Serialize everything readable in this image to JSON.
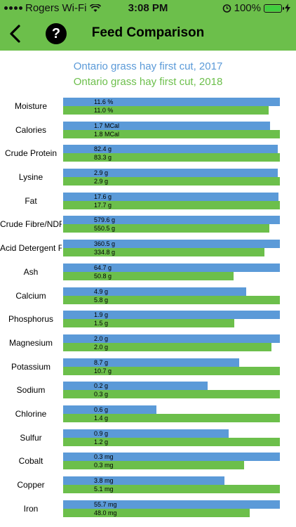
{
  "status": {
    "carrier": "Rogers Wi-Fi",
    "time": "3:08 PM",
    "battery": "100%"
  },
  "header": {
    "title": "Feed Comparison",
    "help_label": "?"
  },
  "legend": {
    "series_a": "Ontario grass hay first cut, 2017",
    "series_b": "Ontario grass hay first cut, 2018"
  },
  "colors": {
    "series_a": "#5b9ad8",
    "series_b": "#6cbf4b"
  },
  "rows": [
    {
      "name": "Moisture",
      "a": "11.6 %",
      "b": "11.0 %",
      "a_frac": 1.0,
      "b_frac": 0.948
    },
    {
      "name": "Calories",
      "a": "1.7 MCal",
      "b": "1.8 MCal",
      "a_frac": 0.956,
      "b_frac": 1.0
    },
    {
      "name": "Crude Protein",
      "a": "82.4 g",
      "b": "83.3 g",
      "a_frac": 0.99,
      "b_frac": 1.0
    },
    {
      "name": "Lysine",
      "a": "2.9 g",
      "b": "2.9 g",
      "a_frac": 0.99,
      "b_frac": 1.0
    },
    {
      "name": "Fat",
      "a": "17.6 g",
      "b": "17.7 g",
      "a_frac": 0.994,
      "b_frac": 1.0
    },
    {
      "name": "Crude Fibre/NDF",
      "a": "579.6 g",
      "b": "550.5 g",
      "a_frac": 1.0,
      "b_frac": 0.95
    },
    {
      "name": "Acid Detergent Fibre",
      "a": "360.5 g",
      "b": "334.8 g",
      "a_frac": 1.0,
      "b_frac": 0.929
    },
    {
      "name": "Ash",
      "a": "64.7 g",
      "b": "50.8 g",
      "a_frac": 1.0,
      "b_frac": 0.785
    },
    {
      "name": "Calcium",
      "a": "4.9 g",
      "b": "5.8 g",
      "a_frac": 0.845,
      "b_frac": 1.0
    },
    {
      "name": "Phosphorus",
      "a": "1.9 g",
      "b": "1.5 g",
      "a_frac": 1.0,
      "b_frac": 0.789
    },
    {
      "name": "Magnesium",
      "a": "2.0 g",
      "b": "2.0 g",
      "a_frac": 1.0,
      "b_frac": 0.96
    },
    {
      "name": "Potassium",
      "a": "8.7 g",
      "b": "10.7 g",
      "a_frac": 0.813,
      "b_frac": 1.0
    },
    {
      "name": "Sodium",
      "a": "0.2 g",
      "b": "0.3 g",
      "a_frac": 0.667,
      "b_frac": 1.0
    },
    {
      "name": "Chlorine",
      "a": "0.6 g",
      "b": "1.4 g",
      "a_frac": 0.43,
      "b_frac": 1.0
    },
    {
      "name": "Sulfur",
      "a": "0.9 g",
      "b": "1.2 g",
      "a_frac": 0.765,
      "b_frac": 1.0
    },
    {
      "name": "Cobalt",
      "a": "0.3 mg",
      "b": "0.3 mg",
      "a_frac": 1.0,
      "b_frac": 0.835
    },
    {
      "name": "Copper",
      "a": "3.8 mg",
      "b": "5.1 mg",
      "a_frac": 0.745,
      "b_frac": 1.0
    },
    {
      "name": "Iron",
      "a": "55.7 mg",
      "b": "48.0 mg",
      "a_frac": 1.0,
      "b_frac": 0.862
    }
  ]
}
